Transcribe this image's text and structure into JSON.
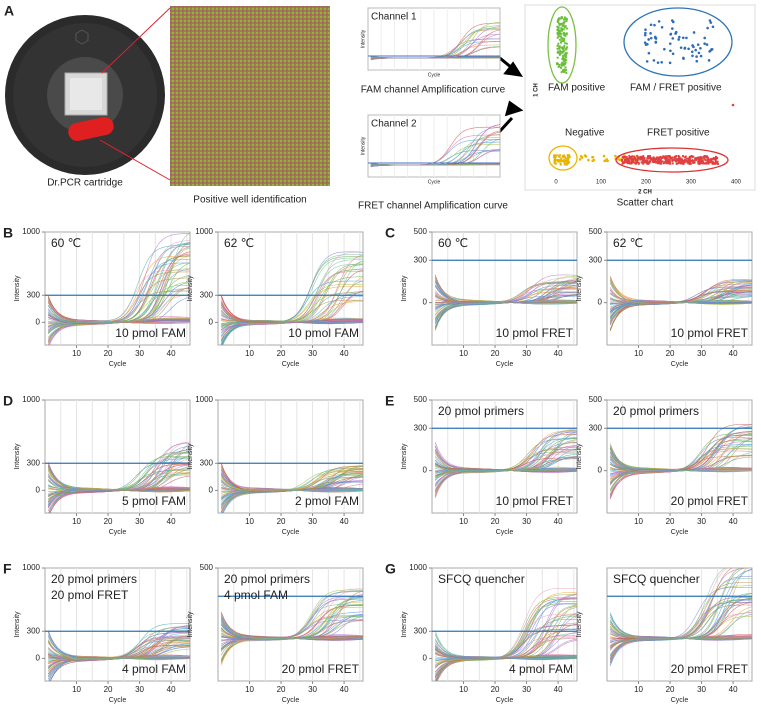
{
  "panel_a": {
    "letter": "A",
    "cartridge_caption": "Dr.PCR cartridge",
    "well_caption": "Positive well identification",
    "channel1": {
      "title": "Channel 1",
      "y_label": "Intensity",
      "x_label": "Cycle",
      "caption": "FAM channel Amplification curve"
    },
    "channel2": {
      "title": "Channel 2",
      "y_label": "Intensity",
      "x_label": "Cycle",
      "caption": "FRET channel Amplification curve"
    },
    "scatter": {
      "y_label": "1 CH",
      "x_label": "2 CH",
      "caption": "Scatter chart",
      "xticks": [
        0,
        100,
        200,
        300,
        400
      ],
      "groups": [
        "FAM positive",
        "FAM / FRET positive",
        "Negative",
        "FRET positive"
      ]
    }
  },
  "rows": [
    {
      "panels": [
        {
          "letter": "B",
          "plots": [
            {
              "top_label": [
                "60 ℃"
              ],
              "bottom_label": "10 pmol FAM",
              "y_label": "Intensity",
              "x_label": "Cycle",
              "yticks": [
                0,
                300,
                1000
              ],
              "ylim": [
                -250,
                1000
              ],
              "threshold": 300,
              "xticks": [
                10,
                20,
                30,
                40
              ],
              "xlim": [
                0,
                46
              ]
            },
            {
              "top_label": [
                "62 ℃"
              ],
              "bottom_label": "10 pmol FAM",
              "y_label": "Intensity",
              "x_label": "Cycle",
              "yticks": [
                0,
                300,
                1000
              ],
              "ylim": [
                -250,
                1000
              ],
              "threshold": 300,
              "xticks": [
                10,
                20,
                30,
                40
              ],
              "xlim": [
                0,
                46
              ]
            }
          ]
        },
        {
          "letter": "C",
          "plots": [
            {
              "top_label": [
                "60 ℃"
              ],
              "bottom_label": "10 pmol FRET",
              "y_label": "Intensity",
              "x_label": "Cycle",
              "yticks": [
                0,
                300,
                500
              ],
              "ylim": [
                -300,
                500
              ],
              "threshold": 300,
              "xticks": [
                10,
                20,
                30,
                40
              ],
              "xlim": [
                0,
                46
              ]
            },
            {
              "top_label": [
                "62 ℃"
              ],
              "bottom_label": "10 pmol FRET",
              "y_label": "Intensity",
              "x_label": "Cycle",
              "yticks": [
                0,
                300,
                500
              ],
              "ylim": [
                -300,
                500
              ],
              "threshold": 300,
              "xticks": [
                10,
                20,
                30,
                40
              ],
              "xlim": [
                0,
                46
              ]
            }
          ]
        }
      ]
    },
    {
      "panels": [
        {
          "letter": "D",
          "plots": [
            {
              "top_label": [],
              "bottom_label": "5 pmol FAM",
              "y_label": "Intensity",
              "x_label": "Cycle",
              "yticks": [
                0,
                300,
                1000
              ],
              "ylim": [
                -250,
                1000
              ],
              "threshold": 300,
              "xticks": [
                10,
                20,
                30,
                40
              ],
              "xlim": [
                0,
                46
              ]
            },
            {
              "top_label": [],
              "bottom_label": "2 pmol FAM",
              "y_label": "Intensity",
              "x_label": "Cycle",
              "yticks": [
                0,
                300,
                1000
              ],
              "ylim": [
                -250,
                1000
              ],
              "threshold": 300,
              "xticks": [
                10,
                20,
                30,
                40
              ],
              "xlim": [
                0,
                46
              ]
            }
          ]
        },
        {
          "letter": "E",
          "plots": [
            {
              "top_label": [
                "20 pmol primers"
              ],
              "bottom_label": "10 pmol FRET",
              "y_label": "Intensity",
              "x_label": "Cycle",
              "yticks": [
                0,
                300,
                500
              ],
              "ylim": [
                -300,
                500
              ],
              "threshold": 300,
              "xticks": [
                10,
                20,
                30,
                40
              ],
              "xlim": [
                0,
                46
              ]
            },
            {
              "top_label": [
                "20 pmol primers"
              ],
              "bottom_label": "20 pmol FRET",
              "y_label": "Intensity",
              "x_label": "Cycle",
              "yticks": [
                0,
                300,
                500
              ],
              "ylim": [
                -300,
                500
              ],
              "threshold": 300,
              "xticks": [
                10,
                20,
                30,
                40
              ],
              "xlim": [
                0,
                46
              ]
            }
          ]
        }
      ]
    },
    {
      "panels": [
        {
          "letter": "F",
          "plots": [
            {
              "top_label": [
                "20 pmol primers",
                "20 pmol FRET"
              ],
              "bottom_label": "4 pmol FAM",
              "y_label": "Intensity",
              "x_label": "Cycle",
              "yticks": [
                0,
                300,
                1000
              ],
              "ylim": [
                -250,
                1000
              ],
              "threshold": 300,
              "xticks": [
                10,
                20,
                30,
                40
              ],
              "xlim": [
                0,
                46
              ]
            },
            {
              "top_label": [
                "20 pmol primers",
                "4 pmol FAM"
              ],
              "bottom_label": "20 pmol FRET",
              "y_label": "Intensity",
              "x_label": "Cycle",
              "yticks": [
                500
              ],
              "ylim": [
                -300,
                500
              ],
              "threshold": 300,
              "xticks": [
                10,
                20,
                30,
                40
              ],
              "xlim": [
                0,
                46
              ]
            }
          ]
        },
        {
          "letter": "G",
          "plots": [
            {
              "top_label": [
                "SFCQ quencher"
              ],
              "bottom_label": "4 pmol FAM",
              "y_label": "Intensity",
              "x_label": "Cycle",
              "yticks": [
                0,
                300,
                1000
              ],
              "ylim": [
                -250,
                1000
              ],
              "threshold": 300,
              "xticks": [
                10,
                20,
                30,
                40
              ],
              "xlim": [
                0,
                46
              ]
            },
            {
              "top_label": [
                "SFCQ quencher"
              ],
              "bottom_label": "20 pmol FRET",
              "y_label": "Intensity",
              "x_label": "Cycle",
              "yticks": [],
              "ylim": [
                -300,
                500
              ],
              "threshold": 300,
              "xticks": [
                10,
                20,
                30,
                40
              ],
              "xlim": [
                0,
                46
              ]
            }
          ]
        }
      ]
    }
  ]
}
